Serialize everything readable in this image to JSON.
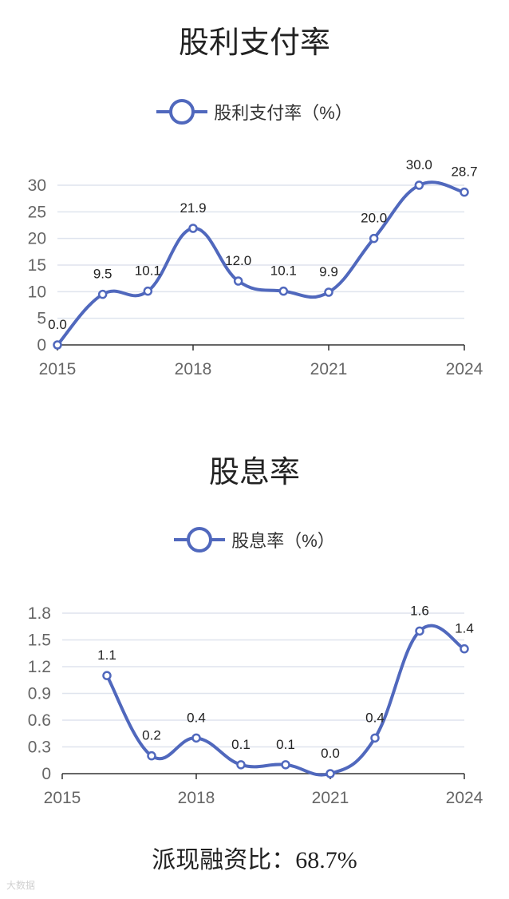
{
  "theme": {
    "line_color": "#5068bd",
    "grid_color": "#dfe4ee",
    "axis_color": "#333333"
  },
  "footer": {
    "label": "派现融资比：",
    "value": "68.7%"
  },
  "watermark": {
    "text": "大数据"
  },
  "chart_data": [
    {
      "type": "line",
      "title": "股利支付率",
      "legend": "股利支付率（%）",
      "x": [
        2015,
        2016,
        2017,
        2018,
        2019,
        2020,
        2021,
        2022,
        2023,
        2024
      ],
      "x_ticks": [
        "2015",
        "2018",
        "2021",
        "2024"
      ],
      "y_ticks": [
        "0",
        "5",
        "10",
        "15",
        "20",
        "25",
        "30"
      ],
      "ylim": [
        0,
        30
      ],
      "series": [
        {
          "name": "股利支付率（%）",
          "values": [
            0.0,
            9.5,
            10.1,
            21.9,
            12.0,
            10.1,
            9.9,
            20.0,
            30.0,
            28.7
          ],
          "labels": [
            "0.0",
            "9.5",
            "10.1",
            "21.9",
            "12.0",
            "10.1",
            "9.9",
            "20.0",
            "30.0",
            "28.7"
          ]
        }
      ],
      "grid": true,
      "legend_position": "top-center"
    },
    {
      "type": "line",
      "title": "股息率",
      "legend": "股息率（%）",
      "x": [
        2016,
        2017,
        2018,
        2019,
        2020,
        2021,
        2022,
        2023,
        2024
      ],
      "x_ticks": [
        "2015",
        "2018",
        "2021",
        "2024"
      ],
      "y_ticks": [
        "0",
        "0.3",
        "0.6",
        "0.9",
        "1.2",
        "1.5",
        "1.8"
      ],
      "ylim": [
        0,
        1.8
      ],
      "series": [
        {
          "name": "股息率（%）",
          "values": [
            1.1,
            0.2,
            0.4,
            0.1,
            0.1,
            0.0,
            0.4,
            1.6,
            1.4
          ],
          "labels": [
            "1.1",
            "0.2",
            "0.4",
            "0.1",
            "0.1",
            "0.0",
            "0.4",
            "1.6",
            "1.4"
          ]
        }
      ],
      "grid": true,
      "legend_position": "top-center"
    }
  ]
}
